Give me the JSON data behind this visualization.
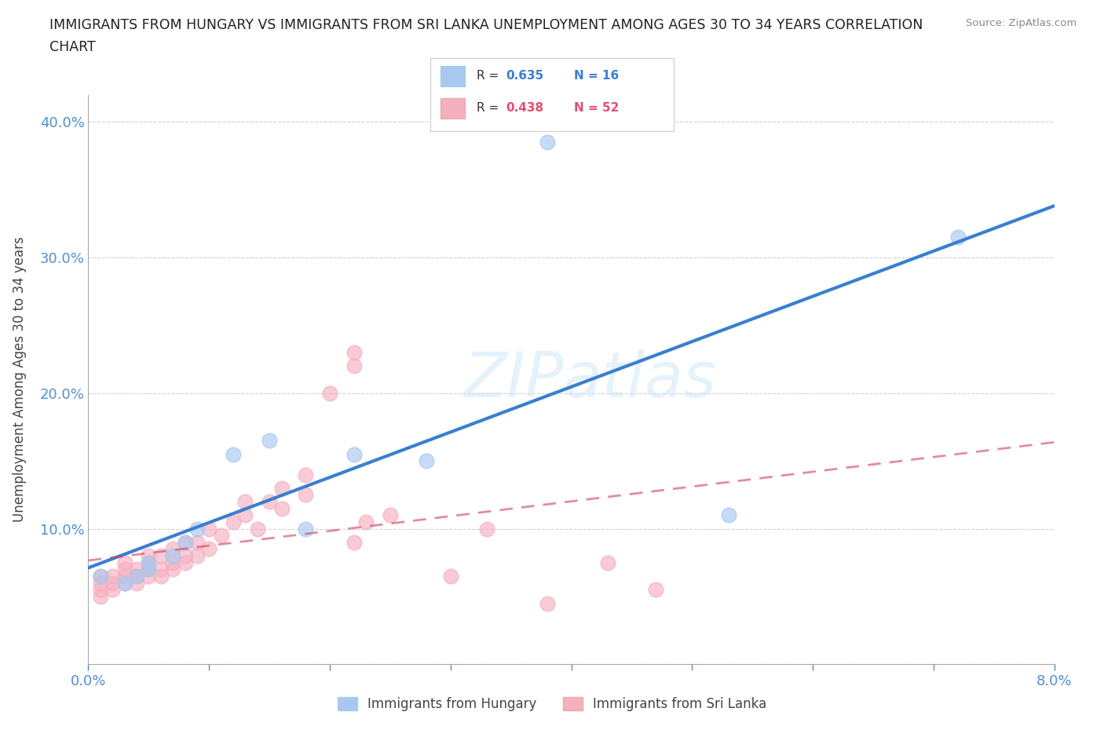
{
  "title_line1": "IMMIGRANTS FROM HUNGARY VS IMMIGRANTS FROM SRI LANKA UNEMPLOYMENT AMONG AGES 30 TO 34 YEARS CORRELATION",
  "title_line2": "CHART",
  "source_text": "Source: ZipAtlas.com",
  "ylabel": "Unemployment Among Ages 30 to 34 years",
  "xlim": [
    0.0,
    0.08
  ],
  "ylim": [
    0.0,
    0.42
  ],
  "xticks": [
    0.0,
    0.01,
    0.02,
    0.03,
    0.04,
    0.05,
    0.06,
    0.07,
    0.08
  ],
  "xticklabels": [
    "0.0%",
    "",
    "",
    "",
    "",
    "",
    "",
    "",
    "8.0%"
  ],
  "yticks": [
    0.0,
    0.1,
    0.2,
    0.3,
    0.4
  ],
  "yticklabels": [
    "",
    "10.0%",
    "20.0%",
    "30.0%",
    "40.0%"
  ],
  "watermark": "ZIPatlas",
  "hungary_color": "#a8c8f0",
  "srilanka_color": "#f5b0c0",
  "hungary_R": 0.635,
  "hungary_N": 16,
  "srilanka_R": 0.438,
  "srilanka_N": 52,
  "hungary_line_color": "#3a7fcf",
  "srilanka_line_color": "#d04060",
  "legend_R_color": "#3a7fcf",
  "legend_R2_color": "#e05070",
  "hungary_x": [
    0.001,
    0.003,
    0.004,
    0.005,
    0.005,
    0.007,
    0.008,
    0.009,
    0.012,
    0.015,
    0.018,
    0.022,
    0.028,
    0.038,
    0.053,
    0.072
  ],
  "hungary_y": [
    0.065,
    0.06,
    0.065,
    0.07,
    0.075,
    0.08,
    0.09,
    0.1,
    0.155,
    0.165,
    0.1,
    0.155,
    0.15,
    0.385,
    0.11,
    0.315
  ],
  "srilanka_x": [
    0.001,
    0.001,
    0.001,
    0.001,
    0.002,
    0.002,
    0.002,
    0.003,
    0.003,
    0.003,
    0.003,
    0.004,
    0.004,
    0.004,
    0.005,
    0.005,
    0.005,
    0.005,
    0.006,
    0.006,
    0.006,
    0.007,
    0.007,
    0.007,
    0.008,
    0.008,
    0.008,
    0.009,
    0.009,
    0.01,
    0.01,
    0.011,
    0.012,
    0.013,
    0.013,
    0.014,
    0.015,
    0.016,
    0.016,
    0.018,
    0.018,
    0.02,
    0.022,
    0.022,
    0.022,
    0.023,
    0.025,
    0.03,
    0.033,
    0.038,
    0.043,
    0.047
  ],
  "srilanka_y": [
    0.05,
    0.055,
    0.06,
    0.065,
    0.055,
    0.06,
    0.065,
    0.06,
    0.065,
    0.07,
    0.075,
    0.06,
    0.065,
    0.07,
    0.065,
    0.07,
    0.075,
    0.08,
    0.065,
    0.07,
    0.08,
    0.07,
    0.075,
    0.085,
    0.075,
    0.08,
    0.09,
    0.08,
    0.09,
    0.085,
    0.1,
    0.095,
    0.105,
    0.11,
    0.12,
    0.1,
    0.12,
    0.115,
    0.13,
    0.125,
    0.14,
    0.2,
    0.22,
    0.23,
    0.09,
    0.105,
    0.11,
    0.065,
    0.1,
    0.045,
    0.075,
    0.055
  ],
  "grid_color": "#cccccc",
  "bg_color": "#ffffff",
  "title_color": "#222222",
  "tick_color": "#5090d0"
}
